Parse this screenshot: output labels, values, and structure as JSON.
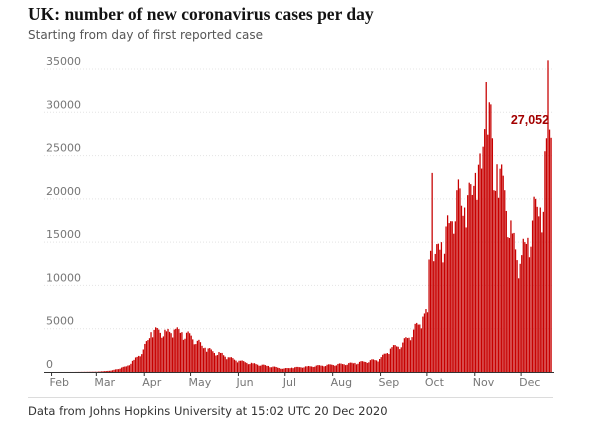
{
  "header": {
    "title": "UK: number of new coronavirus cases per day",
    "subtitle": "Starting from day of first reported case"
  },
  "footer": {
    "source": "Data from Johns Hopkins University at 15:02 UTC 20 Dec 2020"
  },
  "chart_data": {
    "type": "bar",
    "title": "UK: number of new coronavirus cases per day",
    "subtitle": "Starting from day of first reported case",
    "xlabel": "",
    "ylabel": "",
    "ylim": [
      0,
      35000
    ],
    "xlim": [
      "2020-01-31",
      "2020-12-20"
    ],
    "yticks": [
      0,
      5000,
      10000,
      15000,
      20000,
      25000,
      30000,
      35000
    ],
    "ytick_labels": [
      "0",
      "5000",
      "10000",
      "15000",
      "20000",
      "25000",
      "30000",
      "35000"
    ],
    "xticks": [
      "2020-02-01",
      "2020-03-01",
      "2020-04-01",
      "2020-05-01",
      "2020-06-01",
      "2020-07-01",
      "2020-08-01",
      "2020-09-01",
      "2020-10-01",
      "2020-11-01",
      "2020-12-01"
    ],
    "xtick_labels": [
      "Feb",
      "Mar",
      "Apr",
      "May",
      "Jun",
      "Jul",
      "Aug",
      "Sep",
      "Oct",
      "Nov",
      "Dec"
    ],
    "grid": true,
    "color": "#c70000",
    "annotation": {
      "date": "2020-12-20",
      "value": 27052,
      "label": "27,052",
      "color": "#a30000"
    },
    "series": [
      {
        "dates": [
          "2020-01-31",
          "2020-02-15",
          "2020-03-01",
          "2020-03-10",
          "2020-03-20",
          "2020-03-25",
          "2020-03-31",
          "2020-04-05",
          "2020-04-10",
          "2020-04-15",
          "2020-04-20",
          "2020-04-25",
          "2020-05-01",
          "2020-05-05",
          "2020-05-10",
          "2020-05-15",
          "2020-05-20",
          "2020-05-25",
          "2020-06-01",
          "2020-06-10",
          "2020-06-20",
          "2020-06-30",
          "2020-07-05",
          "2020-07-15",
          "2020-07-31",
          "2020-08-15",
          "2020-08-31",
          "2020-09-07",
          "2020-09-15",
          "2020-09-22",
          "2020-09-28",
          "2020-10-01",
          "2020-10-02",
          "2020-10-03",
          "2020-10-04",
          "2020-10-05",
          "2020-10-10",
          "2020-10-15",
          "2020-10-20",
          "2020-10-25",
          "2020-10-31",
          "2020-11-01",
          "2020-11-05",
          "2020-11-08",
          "2020-11-12",
          "2020-11-13",
          "2020-11-15",
          "2020-11-20",
          "2020-11-25",
          "2020-11-30",
          "2020-12-01",
          "2020-12-03",
          "2020-12-05",
          "2020-12-08",
          "2020-12-10",
          "2020-12-13",
          "2020-12-15",
          "2020-12-16",
          "2020-12-17",
          "2020-12-18",
          "2020-12-19",
          "2020-12-20"
        ],
        "values": [
          0,
          5,
          35,
          150,
          650,
          1400,
          2600,
          4600,
          4900,
          4700,
          4900,
          4600,
          4200,
          3600,
          2800,
          2400,
          2200,
          1700,
          1300,
          1000,
          700,
          400,
          500,
          650,
          850,
          1050,
          1500,
          2700,
          3400,
          4900,
          6400,
          6900,
          13000,
          14000,
          23000,
          12800,
          15000,
          17200,
          21000,
          19000,
          21500,
          23000,
          23500,
          33500,
          27000,
          21000,
          24000,
          21000,
          16000,
          12500,
          13500,
          15000,
          15500,
          17500,
          20000,
          19000,
          18500,
          25500,
          27000,
          36000,
          28000,
          27052
        ]
      }
    ]
  }
}
